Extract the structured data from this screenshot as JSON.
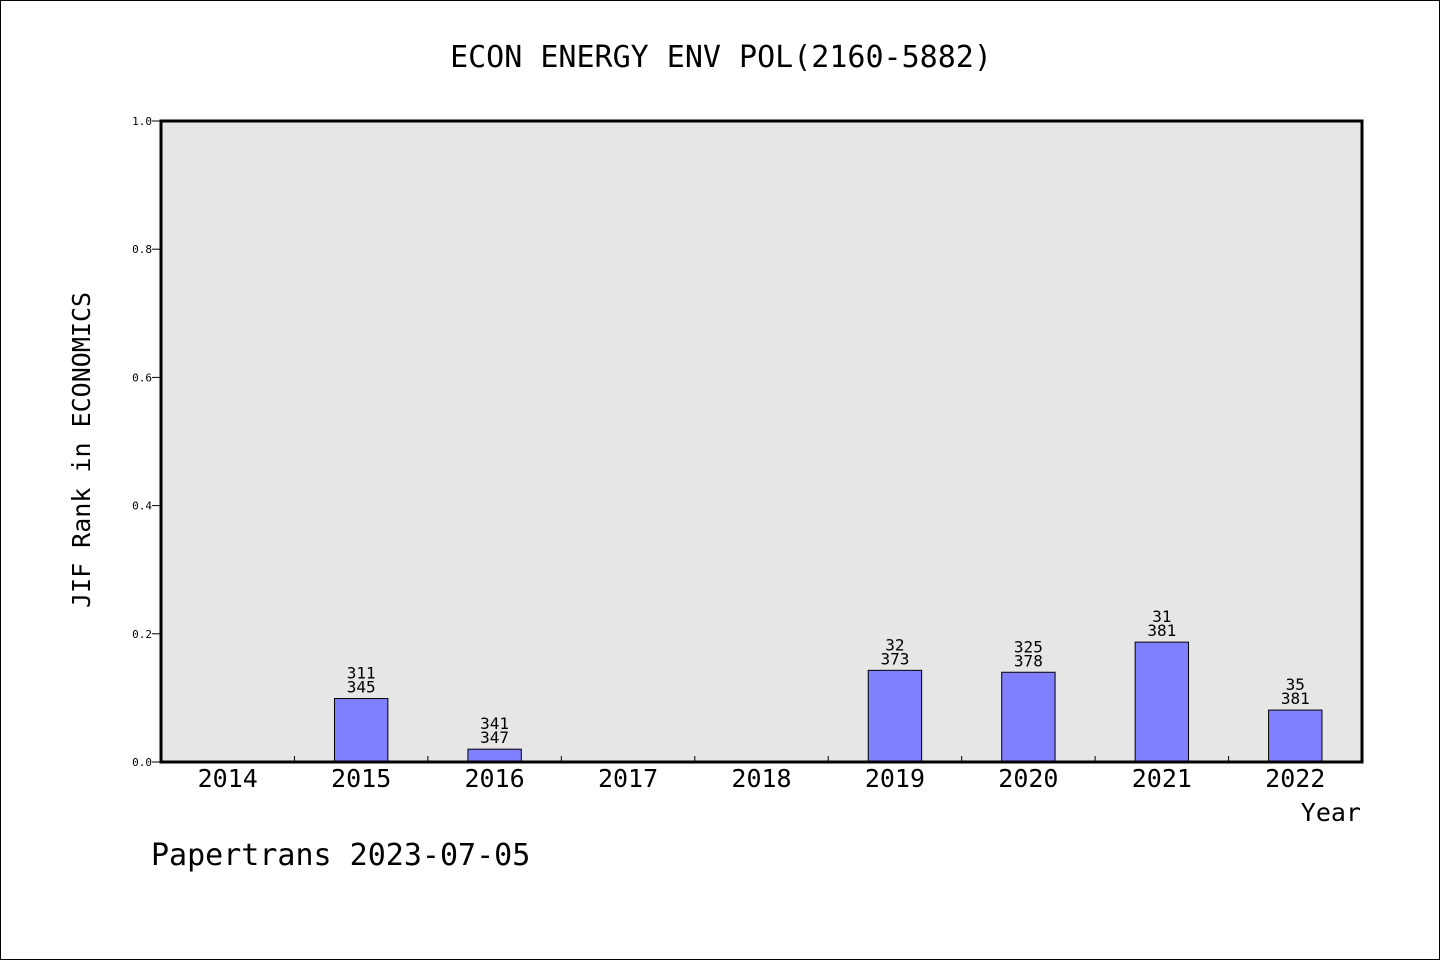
{
  "chart_data": {
    "type": "bar",
    "title": "ECON ENERGY ENV POL(2160-5882)",
    "xlabel": "Year",
    "ylabel": "JIF Rank in ECONOMICS",
    "ylim": [
      0,
      1.0
    ],
    "yticks": [
      "0.0",
      "0.2",
      "0.4",
      "0.6",
      "0.8",
      "1.0"
    ],
    "categories": [
      "2014",
      "2015",
      "2016",
      "2017",
      "2018",
      "2019",
      "2020",
      "2021",
      "2022"
    ],
    "values": [
      null,
      0.099,
      0.02,
      null,
      null,
      0.143,
      0.14,
      0.187,
      0.081
    ],
    "labels_top": [
      "",
      "311",
      "341",
      "",
      "",
      "32",
      "325",
      "31",
      "35"
    ],
    "labels_bottom": [
      "",
      "345",
      "347",
      "",
      "",
      "373",
      "378",
      "381",
      "381"
    ],
    "grid": false,
    "colors": {
      "bar_fill": "#8080ff",
      "plot_background": "#e6e6e6",
      "axis": "#000000"
    }
  },
  "footer": {
    "text": "Papertrans 2023-07-05"
  }
}
